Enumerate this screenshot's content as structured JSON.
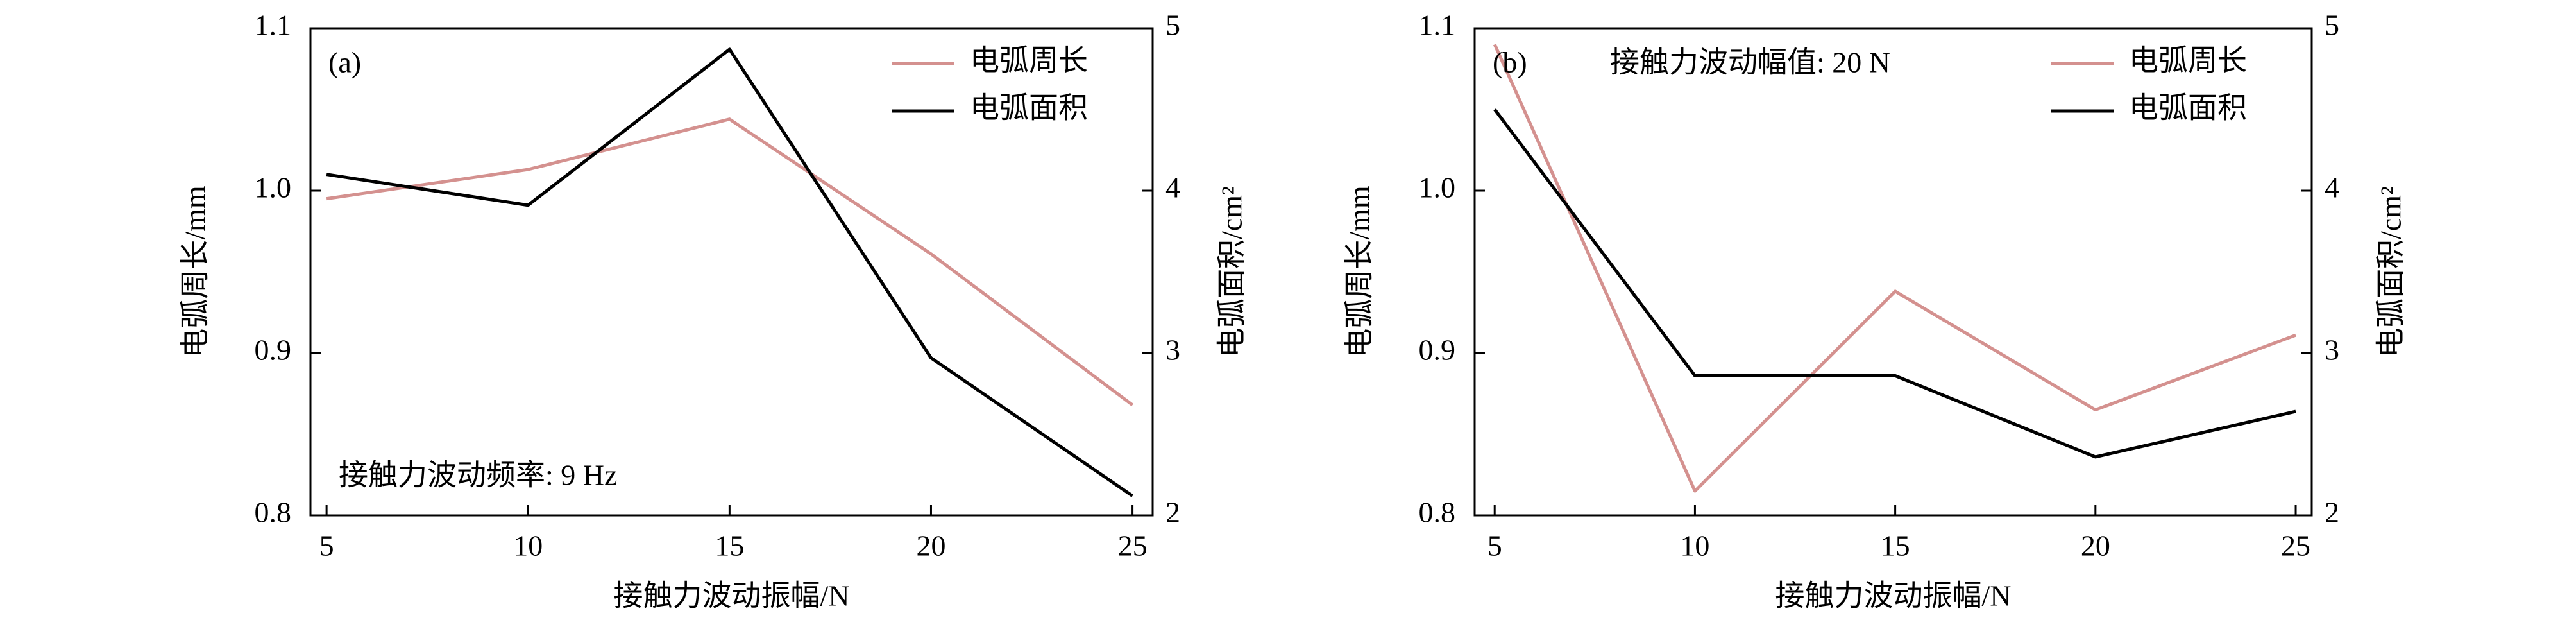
{
  "chart_data": [
    {
      "type": "line",
      "label": "(a)",
      "annotation": "接触力波动频率: 9 Hz",
      "xlabel": "接触力波动振幅/N",
      "ylabel": "电弧周长/mm",
      "y2label": "电弧面积/cm²",
      "x": [
        5,
        10,
        15,
        20,
        25
      ],
      "series": [
        {
          "name": "电弧周长",
          "color": "#d4918f",
          "values": [
            0.995,
            1.013,
            1.044,
            0.961,
            0.868
          ]
        },
        {
          "name": "电弧面积",
          "color": "#000000",
          "axis": "y2",
          "values": [
            4.1,
            3.91,
            4.87,
            2.97,
            2.12
          ]
        }
      ],
      "xlim": [
        4.6,
        25.5
      ],
      "xticks": [
        5,
        10,
        15,
        20,
        25
      ],
      "ylim": [
        0.8,
        1.1
      ],
      "yticks": [
        0.8,
        0.9,
        {
          "value": 1,
          "label": "1.0"
        },
        1.1
      ],
      "y2lim": [
        2,
        5
      ],
      "y2ticks": [
        2,
        3,
        4,
        5
      ],
      "legend": "upper right"
    },
    {
      "type": "line",
      "label": "(b)",
      "annotation": "接触力波动幅值: 20 N",
      "xlabel": "接触力波动振幅/N",
      "ylabel": "电弧周长/mm",
      "y2label": "电弧面积/cm²",
      "x": [
        5,
        10,
        15,
        20,
        25
      ],
      "series": [
        {
          "name": "电弧周长",
          "color": "#d4918f",
          "values": [
            1.09,
            0.815,
            0.938,
            0.865,
            0.911
          ]
        },
        {
          "name": "电弧面积",
          "color": "#000000",
          "axis": "y2",
          "values": [
            4.5,
            2.86,
            2.86,
            2.36,
            2.64
          ]
        }
      ],
      "xlim": [
        4.5,
        25.4
      ],
      "xticks": [
        5,
        10,
        15,
        20,
        25
      ],
      "ylim": [
        0.8,
        1.1
      ],
      "yticks": [
        0.8,
        0.9,
        {
          "value": 1,
          "label": "1.0"
        },
        1.1
      ],
      "y2lim": [
        2,
        5
      ],
      "y2ticks": [
        2,
        3,
        4,
        5
      ],
      "legend": "upper right"
    }
  ]
}
